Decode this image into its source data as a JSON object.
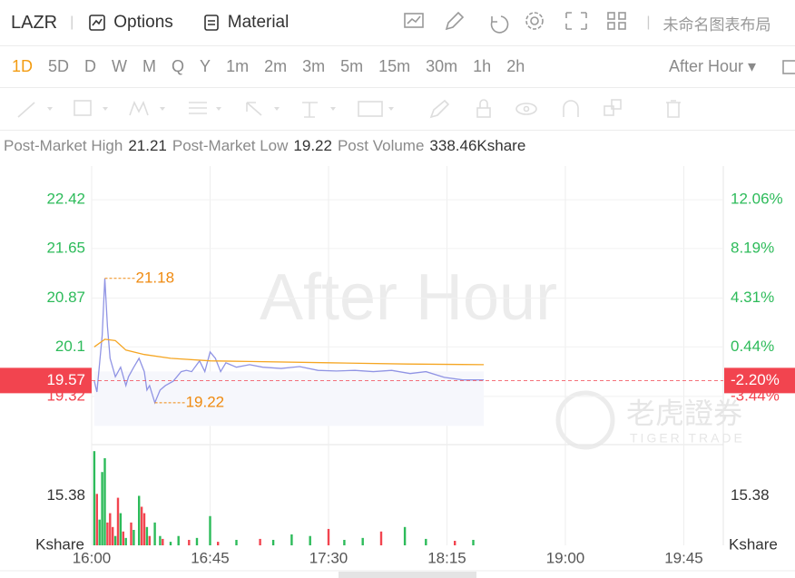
{
  "toolbar": {
    "symbol": "LAZR",
    "buttons": [
      "Options",
      "Material"
    ],
    "layout_name": "未命名图表布局"
  },
  "timeframes": [
    "1D",
    "5D",
    "D",
    "W",
    "M",
    "Q",
    "Y",
    "1m",
    "2m",
    "3m",
    "5m",
    "15m",
    "30m",
    "1h",
    "2h"
  ],
  "active_timeframe": 0,
  "session": "After Hour",
  "stats": [
    {
      "label": "Post-Market High",
      "value": "21.21"
    },
    {
      "label": "Post-Market Low",
      "value": "19.22"
    },
    {
      "label": "Post Volume",
      "value": "338.46Kshare"
    }
  ],
  "watermark": {
    "text": "After Hour",
    "logo": "老虎證券",
    "logo_sub": "TIGER TRADE"
  },
  "chart_data": {
    "type": "line",
    "grid": true,
    "xlim": [
      0,
      240
    ],
    "xticks": [
      {
        "value": 0,
        "label": "16:00"
      },
      {
        "value": 45,
        "label": "16:45"
      },
      {
        "value": 90,
        "label": "17:30"
      },
      {
        "value": 135,
        "label": "18:15"
      },
      {
        "value": 180,
        "label": "19:00"
      },
      {
        "value": 225,
        "label": "19:45"
      }
    ],
    "ylim": [
      18.56,
      22.95
    ],
    "yticks": [
      22.42,
      21.65,
      20.87,
      20.1,
      19.32
    ],
    "y2lim": [
      -7.23,
      14.7
    ],
    "y2ticks": [
      {
        "value": 12.06,
        "label": "12.06%"
      },
      {
        "value": 8.19,
        "label": "8.19%"
      },
      {
        "value": 4.31,
        "label": "4.31%"
      },
      {
        "value": 0.44,
        "label": "0.44%"
      },
      {
        "value": -3.44,
        "label": "-3.44%"
      }
    ],
    "series": [
      {
        "color": "#9094e4",
        "x": [
          1,
          2,
          4,
          5,
          6,
          7,
          9,
          11,
          13,
          14,
          16,
          18,
          20,
          21,
          22,
          24,
          26,
          28,
          31,
          34,
          36,
          38,
          41,
          43,
          45,
          47,
          49,
          51,
          55,
          60,
          65,
          72,
          79,
          86,
          93,
          100,
          107,
          114,
          121,
          127,
          134,
          141,
          149
        ],
        "values": [
          19.56,
          19.39,
          20.28,
          21.18,
          20.42,
          19.92,
          19.63,
          19.78,
          19.49,
          19.63,
          19.78,
          19.92,
          19.71,
          19.42,
          19.49,
          19.22,
          19.42,
          19.49,
          19.56,
          19.71,
          19.73,
          19.71,
          19.88,
          19.71,
          20.02,
          19.92,
          19.71,
          19.85,
          19.78,
          19.82,
          19.78,
          19.76,
          19.79,
          19.73,
          19.72,
          19.73,
          19.71,
          19.73,
          19.68,
          19.71,
          19.62,
          19.58,
          19.58
        ]
      },
      {
        "color": "#f5a623",
        "x": [
          1,
          5,
          9,
          13,
          20,
          30,
          45,
          60,
          90,
          120,
          149
        ],
        "values": [
          20.1,
          20.22,
          20.2,
          20.05,
          19.98,
          19.92,
          19.88,
          19.87,
          19.85,
          19.83,
          19.82
        ]
      }
    ],
    "last_price": 19.57,
    "last_change": {
      "value": -2.2,
      "label": "-2.20%"
    },
    "last_color": "#f2444f",
    "annotation_color": "#ef8a10",
    "annotations": [
      {
        "x": 5,
        "y": 21.18
      },
      {
        "x": 24,
        "y": 19.22
      }
    ],
    "volume": {
      "ylim": [
        0,
        31.33
      ],
      "yticks": [
        15.38
      ],
      "unit": "Kshare",
      "x": [
        1,
        2,
        3,
        4,
        5,
        6,
        7,
        8,
        9,
        10,
        11,
        12,
        13,
        15,
        16,
        18,
        19,
        20,
        21,
        22,
        24,
        26,
        27,
        30,
        33,
        37,
        40,
        45,
        48,
        55,
        64,
        69,
        76,
        83,
        90,
        96,
        103,
        110,
        119,
        127,
        138,
        145
      ],
      "values": [
        29.3,
        16.0,
        8.0,
        22.8,
        27.1,
        7.1,
        10.0,
        5.7,
        2.9,
        14.8,
        10.0,
        4.3,
        2.3,
        7.1,
        4.8,
        15.4,
        12.0,
        10.0,
        5.7,
        2.9,
        7.1,
        2.9,
        2.0,
        1.1,
        2.9,
        1.7,
        2.3,
        9.1,
        1.1,
        1.7,
        2.0,
        1.7,
        3.4,
        2.9,
        5.1,
        1.7,
        2.3,
        4.3,
        5.7,
        2.0,
        1.4,
        1.7
      ],
      "colors": [
        "#2dbb5a",
        "#f2444f",
        "#2dbb5a",
        "#2dbb5a",
        "#2dbb5a",
        "#f2444f",
        "#f2444f",
        "#f2444f",
        "#2dbb5a",
        "#f2444f",
        "#2dbb5a",
        "#f2444f",
        "#2dbb5a",
        "#f2444f",
        "#2dbb5a",
        "#2dbb5a",
        "#f2444f",
        "#f2444f",
        "#2dbb5a",
        "#f2444f",
        "#2dbb5a",
        "#2dbb5a",
        "#f2444f",
        "#2dbb5a",
        "#2dbb5a",
        "#f2444f",
        "#2dbb5a",
        "#2dbb5a",
        "#f2444f",
        "#2dbb5a",
        "#f2444f",
        "#2dbb5a",
        "#2dbb5a",
        "#2dbb5a",
        "#f2444f",
        "#2dbb5a",
        "#2dbb5a",
        "#f2444f",
        "#2dbb5a",
        "#2dbb5a",
        "#f2444f",
        "#2dbb5a"
      ]
    }
  }
}
